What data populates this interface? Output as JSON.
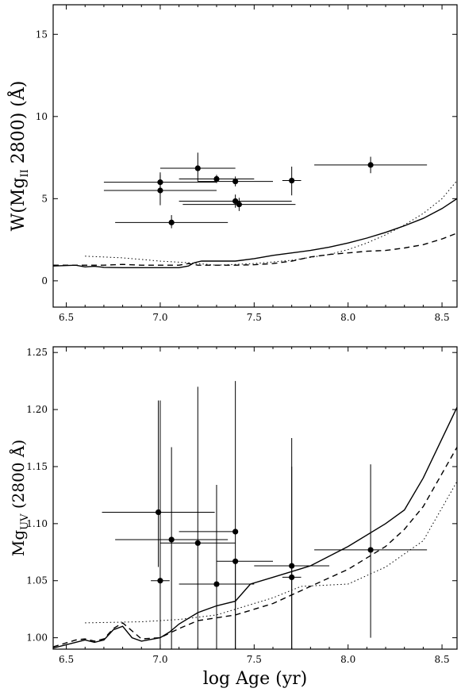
{
  "chart_data": [
    {
      "type": "scatter",
      "xlim": [
        6.43,
        8.58
      ],
      "ylim": [
        -1.6,
        16.8
      ],
      "xticks": [
        6.5,
        7.0,
        7.5,
        8.0,
        8.5
      ],
      "xtick_labels": [
        "6.5",
        "7.0",
        "7.5",
        "8.0",
        "8.5"
      ],
      "yticks": [
        0,
        5,
        10,
        15
      ],
      "ytick_labels": [
        "0",
        "5",
        "10",
        "15"
      ],
      "ylabel": {
        "prefix": "W(Mg",
        "subscript": "II",
        "mid": " 2800) (",
        "unit": "Å",
        "suffix": ")"
      },
      "grid": false,
      "points": [
        {
          "x": 7.0,
          "y": 6.0,
          "xerr": [
            0.3,
            0.3
          ],
          "yerr": [
            0.45,
            0.45
          ]
        },
        {
          "x": 7.0,
          "y": 5.5,
          "xerr": [
            0.3,
            0.3
          ],
          "yerr": [
            0.9,
            1.1
          ]
        },
        {
          "x": 7.06,
          "y": 3.55,
          "xerr": [
            0.3,
            0.3
          ],
          "yerr": [
            0.35,
            0.45
          ]
        },
        {
          "x": 7.2,
          "y": 6.85,
          "xerr": [
            0.2,
            0.2
          ],
          "yerr": [
            0.8,
            0.95
          ]
        },
        {
          "x": 7.3,
          "y": 6.2,
          "xerr": [
            0.2,
            0.2
          ],
          "yerr": [
            0.25,
            0.25
          ]
        },
        {
          "x": 7.4,
          "y": 6.05,
          "xerr": [
            0.2,
            0.2
          ],
          "yerr": [
            0.3,
            0.3
          ]
        },
        {
          "x": 7.4,
          "y": 4.85,
          "xerr": [
            0.3,
            0.3
          ],
          "yerr": [
            0.4,
            0.4
          ]
        },
        {
          "x": 7.42,
          "y": 4.65,
          "xerr": [
            0.3,
            0.3
          ],
          "yerr": [
            0.4,
            0.4
          ]
        },
        {
          "x": 7.7,
          "y": 6.1,
          "xerr": [
            0.05,
            0.05
          ],
          "yerr": [
            0.9,
            0.85
          ]
        },
        {
          "x": 8.12,
          "y": 7.05,
          "xerr": [
            0.3,
            0.3
          ],
          "yerr": [
            0.5,
            0.5
          ]
        }
      ],
      "series": [
        {
          "style": "solid",
          "x": [
            6.43,
            6.55,
            6.6,
            6.65,
            6.7,
            6.8,
            6.9,
            7.0,
            7.05,
            7.1,
            7.15,
            7.18,
            7.22,
            7.3,
            7.4,
            7.5,
            7.6,
            7.7,
            7.8,
            7.9,
            8.0,
            8.1,
            8.2,
            8.3,
            8.4,
            8.5,
            8.58
          ],
          "y": [
            0.9,
            0.95,
            0.85,
            0.88,
            0.82,
            0.8,
            0.8,
            0.8,
            0.8,
            0.8,
            0.9,
            1.1,
            1.2,
            1.2,
            1.2,
            1.35,
            1.55,
            1.7,
            1.85,
            2.05,
            2.3,
            2.6,
            2.95,
            3.35,
            3.8,
            4.4,
            5.0
          ]
        },
        {
          "style": "dashed",
          "x": [
            6.43,
            6.6,
            6.7,
            6.8,
            6.9,
            7.0,
            7.1,
            7.15,
            7.2,
            7.3,
            7.4,
            7.5,
            7.6,
            7.7,
            7.8,
            7.9,
            8.0,
            8.1,
            8.2,
            8.3,
            8.4,
            8.5,
            8.58
          ],
          "y": [
            0.95,
            0.95,
            0.95,
            1.0,
            0.95,
            0.95,
            0.95,
            1.05,
            0.95,
            0.95,
            0.95,
            0.98,
            1.05,
            1.2,
            1.45,
            1.6,
            1.7,
            1.8,
            1.85,
            2.0,
            2.2,
            2.55,
            2.9
          ]
        },
        {
          "style": "dotted",
          "x": [
            6.6,
            6.8,
            7.0,
            7.15,
            7.3,
            7.5,
            7.7,
            7.9,
            8.0,
            8.1,
            8.2,
            8.3,
            8.4,
            8.5,
            8.58
          ],
          "y": [
            1.5,
            1.4,
            1.2,
            1.1,
            0.95,
            1.05,
            1.25,
            1.6,
            1.9,
            2.3,
            2.8,
            3.4,
            4.1,
            5.0,
            6.1
          ]
        }
      ]
    },
    {
      "type": "scatter",
      "xlim": [
        6.43,
        8.58
      ],
      "ylim": [
        0.99,
        1.255
      ],
      "xticks": [
        6.5,
        7.0,
        7.5,
        8.0,
        8.5
      ],
      "xtick_labels": [
        "6.5",
        "7.0",
        "7.5",
        "8.0",
        "8.5"
      ],
      "yticks": [
        1.0,
        1.05,
        1.1,
        1.15,
        1.2,
        1.25
      ],
      "ytick_labels": [
        "1.00",
        "1.05",
        "1.10",
        "1.15",
        "1.20",
        "1.25"
      ],
      "xlabel": "log Age  (yr)",
      "ylabel": {
        "prefix": "Mg",
        "subscript": "UV",
        "mid": "  (2800 ",
        "unit": "Å",
        "suffix": ")"
      },
      "grid": false,
      "points": [
        {
          "x": 6.99,
          "y": 1.11,
          "xerr": [
            0.3,
            0.3
          ],
          "yerr": [
            0.048,
            0.098
          ]
        },
        {
          "x": 7.0,
          "y": 1.05,
          "xerr": [
            0.05,
            0.05
          ],
          "yerr": [
            0.06,
            0.158
          ]
        },
        {
          "x": 7.06,
          "y": 1.086,
          "xerr": [
            0.3,
            0.3
          ],
          "yerr": [
            0.096,
            0.081
          ]
        },
        {
          "x": 7.2,
          "y": 1.083,
          "xerr": [
            0.2,
            0.2
          ],
          "yerr": [
            0.093,
            0.137
          ]
        },
        {
          "x": 7.3,
          "y": 1.047,
          "xerr": [
            0.2,
            0.2
          ],
          "yerr": [
            0.057,
            0.087
          ]
        },
        {
          "x": 7.4,
          "y": 1.093,
          "xerr": [
            0.3,
            0.0
          ],
          "yerr": [
            0.103,
            0.132
          ]
        },
        {
          "x": 7.4,
          "y": 1.067,
          "xerr": [
            0.1,
            0.2
          ],
          "yerr": [
            0.077,
            0.0
          ]
        },
        {
          "x": 7.7,
          "y": 1.063,
          "xerr": [
            0.2,
            0.2
          ],
          "yerr": [
            0.073,
            0.112
          ]
        },
        {
          "x": 7.7,
          "y": 1.053,
          "xerr": [
            0.05,
            0.05
          ],
          "yerr": [
            0.063,
            0.097
          ]
        },
        {
          "x": 8.12,
          "y": 1.077,
          "xerr": [
            0.3,
            0.3
          ],
          "yerr": [
            0.077,
            0.075
          ]
        }
      ],
      "series": [
        {
          "style": "solid",
          "x": [
            6.43,
            6.55,
            6.6,
            6.65,
            6.7,
            6.75,
            6.8,
            6.85,
            6.9,
            7.0,
            7.05,
            7.1,
            7.2,
            7.3,
            7.4,
            7.48,
            7.6,
            7.8,
            8.0,
            8.2,
            8.3,
            8.4,
            8.58
          ],
          "y": [
            0.991,
            0.996,
            0.998,
            0.996,
            0.998,
            1.007,
            1.01,
            1.0,
            0.997,
            1.0,
            1.005,
            1.012,
            1.022,
            1.028,
            1.032,
            1.047,
            1.053,
            1.063,
            1.08,
            1.1,
            1.112,
            1.14,
            1.202
          ]
        },
        {
          "style": "dashed",
          "x": [
            6.43,
            6.55,
            6.6,
            6.65,
            6.7,
            6.75,
            6.8,
            6.85,
            6.9,
            7.0,
            7.1,
            7.2,
            7.4,
            7.6,
            7.8,
            8.0,
            8.2,
            8.3,
            8.4,
            8.58
          ],
          "y": [
            0.992,
            0.998,
            0.999,
            0.997,
            0.999,
            1.008,
            1.013,
            1.006,
            0.999,
            1.0,
            1.008,
            1.015,
            1.02,
            1.03,
            1.045,
            1.06,
            1.08,
            1.095,
            1.115,
            1.167
          ]
        },
        {
          "style": "dotted",
          "x": [
            6.6,
            6.9,
            7.1,
            7.3,
            7.5,
            7.6,
            7.75,
            8.0,
            8.2,
            8.4,
            8.58
          ],
          "y": [
            1.013,
            1.014,
            1.016,
            1.02,
            1.03,
            1.035,
            1.045,
            1.047,
            1.062,
            1.085,
            1.137
          ]
        }
      ]
    }
  ]
}
